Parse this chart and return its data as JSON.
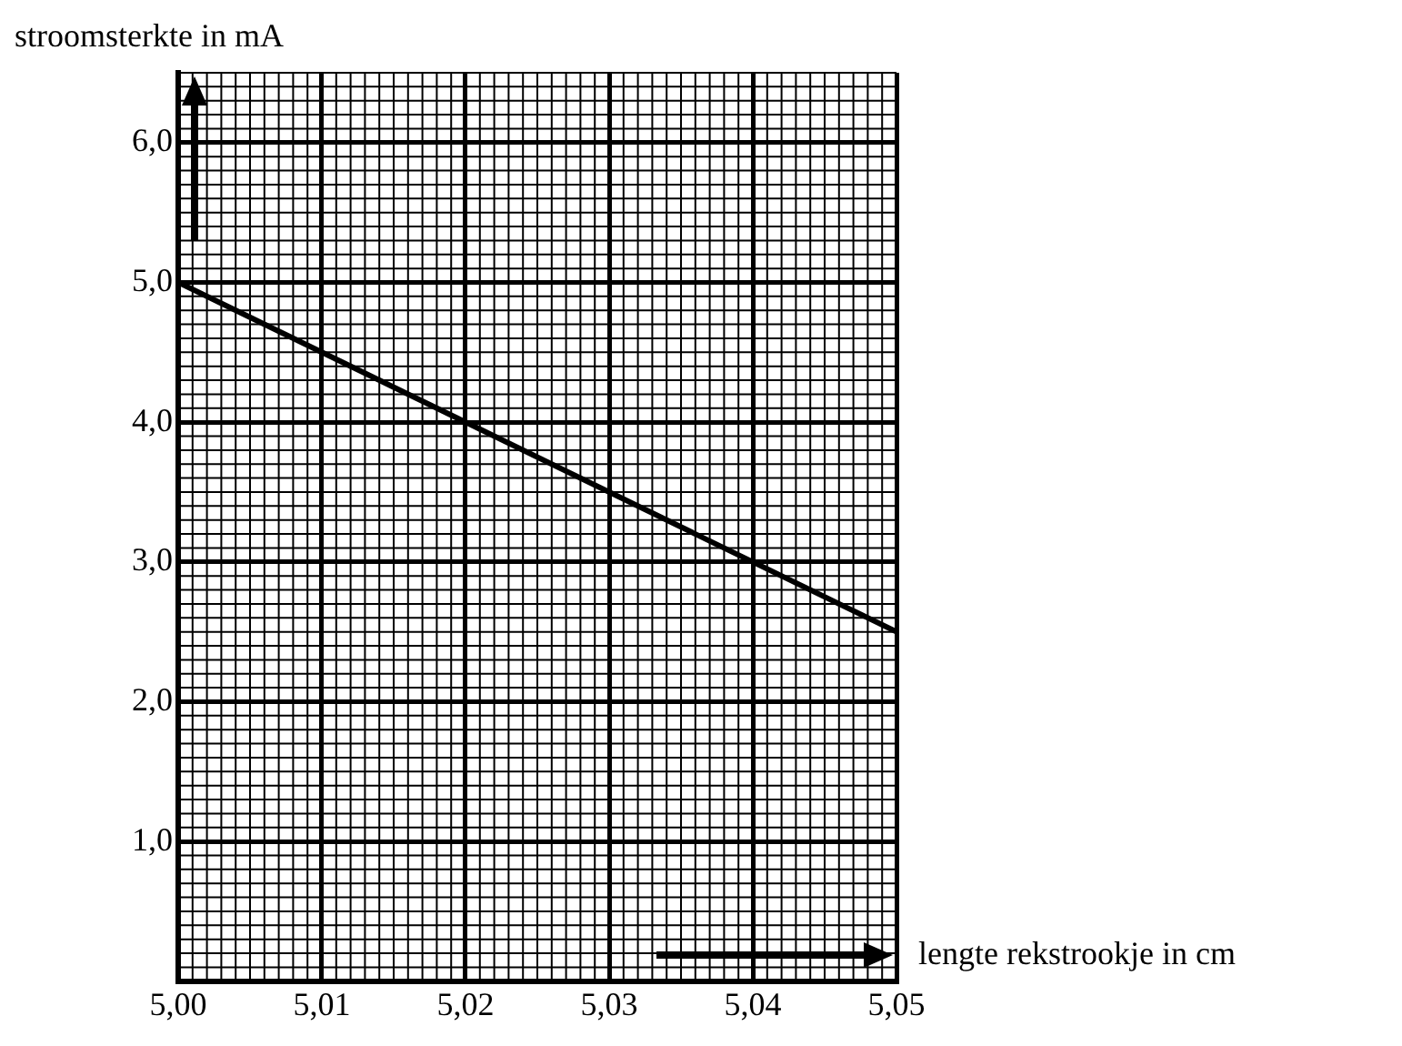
{
  "chart_data": {
    "type": "line",
    "ylabel": "stroomsterkte in mA",
    "xlabel": "lengte rekstrookje in cm",
    "x": [
      5.0,
      5.05
    ],
    "series": [
      {
        "color": "#000000",
        "values": [
          5.0,
          2.5
        ]
      }
    ],
    "xlim": [
      5.0,
      5.05
    ],
    "ylim": [
      0,
      6.5
    ],
    "xticks": [
      {
        "value": 5.0,
        "label": "5,00"
      },
      {
        "value": 5.01,
        "label": "5,01"
      },
      {
        "value": 5.02,
        "label": "5,02"
      },
      {
        "value": 5.03,
        "label": "5,03"
      },
      {
        "value": 5.04,
        "label": "5,04"
      },
      {
        "value": 5.05,
        "label": "5,05"
      }
    ],
    "yticks": [
      {
        "value": 1,
        "label": "1,0"
      },
      {
        "value": 2,
        "label": "2,0"
      },
      {
        "value": 3,
        "label": "3,0"
      },
      {
        "value": 4,
        "label": "4,0"
      },
      {
        "value": 5,
        "label": "5,0"
      },
      {
        "value": 6,
        "label": "6,0"
      }
    ],
    "grid": true,
    "legend": false,
    "marker": "none",
    "line_style": "solid"
  }
}
